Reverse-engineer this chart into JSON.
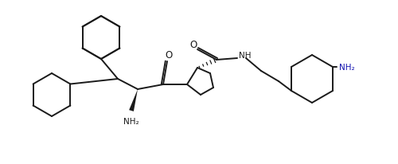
{
  "bg_color": "#ffffff",
  "line_color": "#1a1a1a",
  "text_color_black": "#1a1a1a",
  "text_color_blue": "#1010b0",
  "lw": 1.4,
  "figsize": [
    5.0,
    2.07
  ],
  "dpi": 100,
  "xlim": [
    0,
    500
  ],
  "ylim": [
    207,
    0
  ]
}
